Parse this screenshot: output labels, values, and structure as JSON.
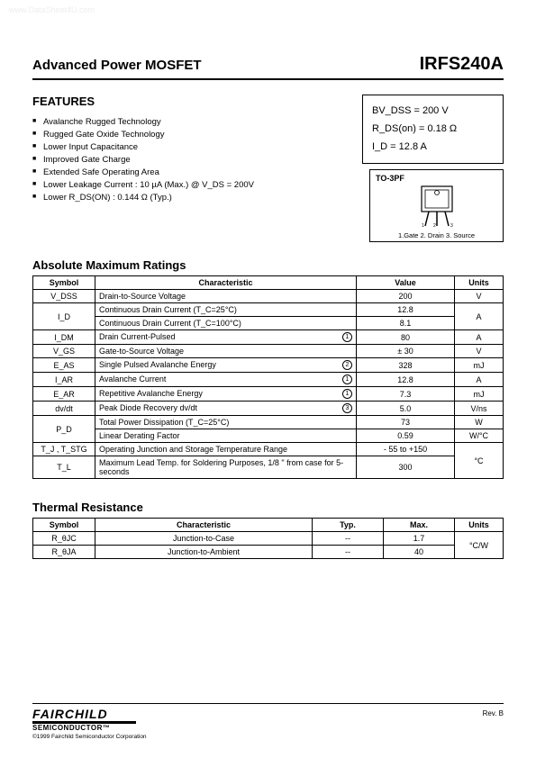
{
  "watermark": "www.DataSheet4U.com",
  "header": {
    "left": "Advanced Power MOSFET",
    "right": "IRFS240A"
  },
  "features": {
    "title": "FEATURES",
    "items": [
      "Avalanche Rugged Technology",
      "Rugged Gate Oxide Technology",
      "Lower Input Capacitance",
      "Improved Gate Charge",
      "Extended Safe Operating Area",
      "Lower Leakage Current : 10 µA (Max.) @ V_DS = 200V",
      "Lower R_DS(ON) : 0.144 Ω (Typ.)"
    ]
  },
  "spec_box": {
    "line1": "BV_DSS  =  200 V",
    "line2": "R_DS(on)  =  0.18 Ω",
    "line3": "I_D  =  12.8 A"
  },
  "package": {
    "label": "TO-3PF",
    "pins": "1.Gate  2. Drain  3. Source"
  },
  "abs_max": {
    "title": "Absolute Maximum Ratings",
    "headers": {
      "symbol": "Symbol",
      "char": "Characteristic",
      "value": "Value",
      "units": "Units"
    },
    "rows": [
      {
        "symbol": "V_DSS",
        "char": "Drain-to-Source Voltage",
        "note": "",
        "value": "200",
        "units": "V",
        "rowspan_sym": 1,
        "rowspan_units": 1
      },
      {
        "symbol": "I_D",
        "char": "Continuous Drain Current (T_C=25°C)",
        "note": "",
        "value": "12.8",
        "units": "A",
        "rowspan_sym": 2,
        "rowspan_units": 2
      },
      {
        "symbol": "",
        "char": "Continuous Drain Current (T_C=100°C)",
        "note": "",
        "value": "8.1",
        "units": "",
        "rowspan_sym": 0,
        "rowspan_units": 0
      },
      {
        "symbol": "I_DM",
        "char": "Drain Current-Pulsed",
        "note": "1",
        "value": "80",
        "units": "A",
        "rowspan_sym": 1,
        "rowspan_units": 1
      },
      {
        "symbol": "V_GS",
        "char": "Gate-to-Source Voltage",
        "note": "",
        "value": "± 30",
        "units": "V",
        "rowspan_sym": 1,
        "rowspan_units": 1
      },
      {
        "symbol": "E_AS",
        "char": "Single Pulsed Avalanche Energy",
        "note": "2",
        "value": "328",
        "units": "mJ",
        "rowspan_sym": 1,
        "rowspan_units": 1
      },
      {
        "symbol": "I_AR",
        "char": "Avalanche Current",
        "note": "1",
        "value": "12.8",
        "units": "A",
        "rowspan_sym": 1,
        "rowspan_units": 1
      },
      {
        "symbol": "E_AR",
        "char": "Repetitive Avalanche Energy",
        "note": "1",
        "value": "7.3",
        "units": "mJ",
        "rowspan_sym": 1,
        "rowspan_units": 1
      },
      {
        "symbol": "dv/dt",
        "char": "Peak Diode Recovery dv/dt",
        "note": "3",
        "value": "5.0",
        "units": "V/ns",
        "rowspan_sym": 1,
        "rowspan_units": 1
      },
      {
        "symbol": "P_D",
        "char": "Total Power Dissipation (T_C=25°C)",
        "note": "",
        "value": "73",
        "units": "W",
        "rowspan_sym": 2,
        "rowspan_units": 1
      },
      {
        "symbol": "",
        "char": "Linear Derating Factor",
        "note": "",
        "value": "0.59",
        "units": "W/°C",
        "rowspan_sym": 0,
        "rowspan_units": 1
      },
      {
        "symbol": "T_J , T_STG",
        "char": "Operating Junction and Storage Temperature Range",
        "note": "",
        "value": "- 55 to +150",
        "units": "°C",
        "rowspan_sym": 1,
        "rowspan_units": 2
      },
      {
        "symbol": "T_L",
        "char": "Maximum Lead Temp. for Soldering Purposes, 1/8 \" from case for 5-seconds",
        "note": "",
        "value": "300",
        "units": "",
        "rowspan_sym": 1,
        "rowspan_units": 0
      }
    ]
  },
  "thermal": {
    "title": "Thermal Resistance",
    "headers": {
      "symbol": "Symbol",
      "char": "Characteristic",
      "typ": "Typ.",
      "max": "Max.",
      "units": "Units"
    },
    "rows": [
      {
        "symbol": "R_θJC",
        "char": "Junction-to-Case",
        "typ": "--",
        "max": "1.7"
      },
      {
        "symbol": "R_θJA",
        "char": "Junction-to-Ambient",
        "typ": "--",
        "max": "40"
      }
    ],
    "units": "°C/W"
  },
  "footer": {
    "logo": "FAIRCHILD",
    "sub": "SEMICONDUCTOR™",
    "copyright": "©1999 Fairchild Semiconductor Corporation",
    "rev": "Rev. B"
  }
}
